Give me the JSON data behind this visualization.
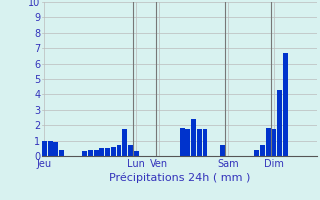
{
  "title": "Précipitations 24h ( mm )",
  "ylim": [
    0,
    10
  ],
  "yticks": [
    0,
    1,
    2,
    3,
    4,
    5,
    6,
    7,
    8,
    9,
    10
  ],
  "background_color": "#d8f2f0",
  "bar_color_dark": "#0033cc",
  "bar_color_light": "#3399ff",
  "grid_color": "#bbbbbb",
  "num_bars": 48,
  "values": [
    1.0,
    1.0,
    0.9,
    0.4,
    0.0,
    0.0,
    0.0,
    0.3,
    0.4,
    0.4,
    0.5,
    0.5,
    0.6,
    0.7,
    1.75,
    0.7,
    0.3,
    0.0,
    0.0,
    0.0,
    0.0,
    0.0,
    0.0,
    0.0,
    1.8,
    1.75,
    2.4,
    1.75,
    1.75,
    0.0,
    0.0,
    0.7,
    0.0,
    0.0,
    0.0,
    0.0,
    0.0,
    0.4,
    0.7,
    1.8,
    1.75,
    4.3,
    6.7,
    0.0,
    0.0,
    0.0,
    0.0,
    0.0
  ],
  "day_labels": [
    "Jeu",
    "Lun",
    "Ven",
    "Sam",
    "Dim"
  ],
  "day_tick_positions": [
    0,
    16,
    20,
    32,
    40
  ],
  "vline_positions": [
    16,
    20,
    32,
    40
  ],
  "xlabel_fontsize": 8,
  "tick_fontsize": 7,
  "ytick_fontsize": 7
}
